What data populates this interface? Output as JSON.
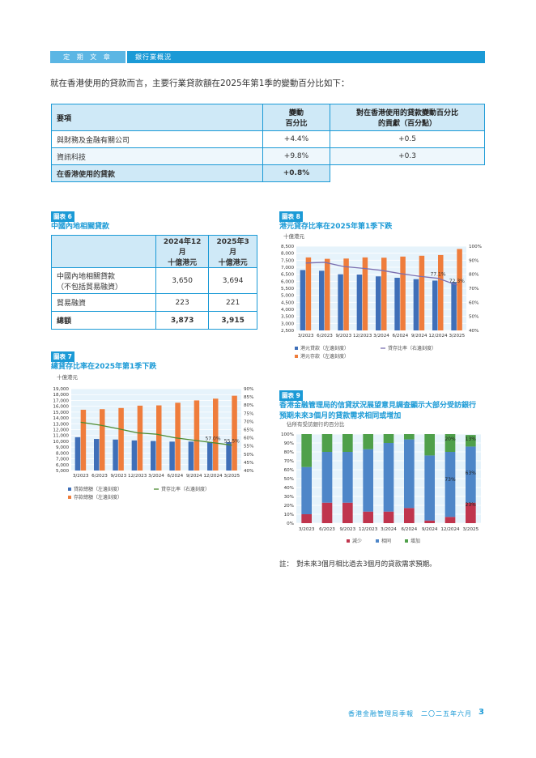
{
  "header": {
    "section": "定 期 文 章",
    "topic": "銀行業概況"
  },
  "intro": "就在香港使用的貸款而言，主要行業貸款額在2025年第1季的變動百分比如下：",
  "table1": {
    "headers": [
      "要項",
      "變動\n百分比",
      "對在香港使用的貸款變動百分比\n的貢獻（百分點）"
    ],
    "rows": [
      [
        "與財務及金融有關公司",
        "+4.4%",
        "+0.5"
      ],
      [
        "資訊科技",
        "+9.8%",
        "+0.3"
      ],
      [
        "在香港使用的貸款",
        "+0.8%",
        ""
      ]
    ]
  },
  "chart6": {
    "label": "圖表 6",
    "title": "中國內地相關貸款",
    "headers": [
      "",
      "2024年12月\n十億港元",
      "2025年3月\n十億港元"
    ],
    "rows": [
      [
        "中國內地相關貸款\n（不包括貿易融資）",
        "3,650",
        "3,694"
      ],
      [
        "貿易融資",
        "223",
        "221"
      ],
      [
        "總額",
        "3,873",
        "3,915"
      ]
    ]
  },
  "chart_data": [
    {
      "id": "chart7",
      "type": "bar",
      "label": "圖表 7",
      "title": "總貸存比率在2025年第1季下跌",
      "unit": "十億港元",
      "categories": [
        "3/2023",
        "6/2023",
        "9/2023",
        "12/2023",
        "3/2024",
        "6/2024",
        "9/2024",
        "12/2024",
        "3/2025"
      ],
      "series": [
        {
          "name": "貸款總額（左邊刻度）",
          "color": "#3f6fb8",
          "values": [
            10700,
            10400,
            10300,
            10150,
            10050,
            9950,
            9950,
            9900,
            9850
          ]
        },
        {
          "name": "存款總額（左邊刻度）",
          "color": "#ef7d3c",
          "values": [
            15400,
            15500,
            15700,
            16100,
            16150,
            16600,
            17000,
            17300,
            17800
          ]
        },
        {
          "name": "貸存比率（右邊刻度）",
          "type": "line",
          "axis": "right",
          "color": "#4c8a2f",
          "values": [
            69.5,
            67.8,
            65.5,
            63.0,
            62.2,
            60.0,
            58.5,
            57.0,
            55.5
          ]
        }
      ],
      "ylim": [
        5000,
        19000
      ],
      "yticks": [
        "19,000",
        "18,000",
        "17,000",
        "16,000",
        "15,000",
        "14,000",
        "13,000",
        "12,000",
        "11,000",
        "10,000",
        "9,000",
        "8,000",
        "7,000",
        "6,000",
        "5,000"
      ],
      "y2lim": [
        40,
        90
      ],
      "y2ticks": [
        "90%",
        "85%",
        "80%",
        "75%",
        "70%",
        "65%",
        "60%",
        "55%",
        "50%",
        "45%",
        "40%"
      ],
      "annotations": [
        "57.0%",
        "55.5%"
      ]
    },
    {
      "id": "chart8",
      "type": "bar",
      "label": "圖表 8",
      "title": "港元貸存比率在2025年第1季下跌",
      "unit": "十億港元",
      "categories": [
        "3/2023",
        "6/2023",
        "9/2023",
        "12/2023",
        "3/2024",
        "6/2024",
        "9/2024",
        "12/2024",
        "3/2025"
      ],
      "series": [
        {
          "name": "港元貸款（左邊刻度）",
          "color": "#3f6fb8",
          "values": [
            6800,
            6750,
            6500,
            6480,
            6350,
            6250,
            6150,
            6050,
            5950
          ]
        },
        {
          "name": "港元存款（左邊刻度）",
          "color": "#ef7d3c",
          "values": [
            7700,
            7600,
            7620,
            7700,
            7680,
            7760,
            7820,
            7870,
            8300
          ]
        },
        {
          "name": "貸存比率（右邊刻度）",
          "type": "line",
          "axis": "right",
          "color": "#7b6fb0",
          "values": [
            88.0,
            88.5,
            85.5,
            84.3,
            82.8,
            80.5,
            78.6,
            77.1,
            72.3
          ]
        }
      ],
      "ylim": [
        2500,
        8500
      ],
      "yticks": [
        "8,500",
        "8,000",
        "7,500",
        "7,000",
        "6,500",
        "6,000",
        "5,500",
        "5,000",
        "4,500",
        "4,000",
        "3,500",
        "3,000",
        "2,500"
      ],
      "y2lim": [
        40,
        100
      ],
      "y2ticks": [
        "100%",
        "90%",
        "80%",
        "70%",
        "60%",
        "50%",
        "40%"
      ],
      "annotations": [
        "77.1%",
        "72.3%"
      ]
    },
    {
      "id": "chart9",
      "type": "bar",
      "stacked": true,
      "label": "圖表 9",
      "title": "香港金融管理局的信貸狀況展望意見調查顯示大部分受訪銀行預期未來3個月的貸款需求相同或增加",
      "unit": "佔所有受訪銀行的百分比",
      "categories": [
        "3/2023",
        "6/2023",
        "9/2023",
        "12/2023",
        "3/2024",
        "6/2024",
        "9/2024",
        "12/2024",
        "3/2025"
      ],
      "series": [
        {
          "name": "減少",
          "color": "#c0354d",
          "values": [
            10,
            23,
            23,
            13,
            13,
            17,
            3,
            7,
            23
          ]
        },
        {
          "name": "相同",
          "color": "#4e86c8",
          "values": [
            53,
            57,
            57,
            70,
            77,
            77,
            73,
            73,
            63
          ]
        },
        {
          "name": "增加",
          "color": "#4fa04a",
          "values": [
            37,
            20,
            20,
            17,
            10,
            6,
            24,
            20,
            13
          ]
        }
      ],
      "ylim": [
        0,
        100
      ],
      "yticks": [
        "100%",
        "90%",
        "80%",
        "70%",
        "60%",
        "50%",
        "40%",
        "30%",
        "20%",
        "10%",
        "0%"
      ],
      "annotations": [
        "20%",
        "13%",
        "73%",
        "63%",
        "23%"
      ]
    }
  ],
  "note": "註：　對未來3個月相比過去3個月的貸款需求預期。",
  "footer": "香港金融管理局季報　二〇二五年六月",
  "page_number": "3"
}
